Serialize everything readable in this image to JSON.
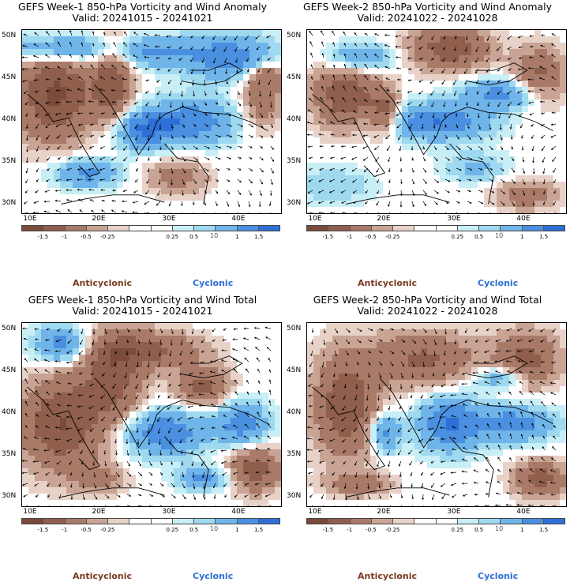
{
  "panels": [
    {
      "title_line1": "GEFS Week-1 850-hPa Vorticity and Wind Anomaly",
      "title_line2": "Valid: 20241015 - 20241021"
    },
    {
      "title_line1": "GEFS Week-2 850-hPa Vorticity and Wind Anomaly",
      "title_line2": "Valid: 20241022 - 20241028"
    },
    {
      "title_line1": "GEFS Week-1 850-hPa Vorticity and Wind Total",
      "title_line2": "Valid: 20241015 - 20241021"
    },
    {
      "title_line1": "GEFS Week-2 850-hPa Vorticity and Wind Total",
      "title_line2": "Valid: 20241022 - 20241028"
    }
  ],
  "lat_labels": [
    "50N",
    "45N",
    "40N",
    "35N",
    "30N"
  ],
  "lon_labels": [
    "10E",
    "20E",
    "30E",
    "40E"
  ],
  "colorbar": {
    "colors": [
      "#7a4a3a",
      "#8f5e4c",
      "#a97a68",
      "#c9a393",
      "#e8d2c8",
      "#ffffff",
      "#ffffff",
      "#c8eef6",
      "#9fd9f0",
      "#6fb5ea",
      "#4a8fe0",
      "#2e6fd8"
    ],
    "ticks": [
      "-1.5",
      "-1",
      "-0.5",
      "-0.25",
      "0.25",
      "0.5",
      "1",
      "1.5"
    ],
    "unit": "10",
    "unit_sup": "-5"
  },
  "legend": {
    "anticyclonic": "Anticyclonic",
    "cyclonic": "Cyclonic"
  }
}
